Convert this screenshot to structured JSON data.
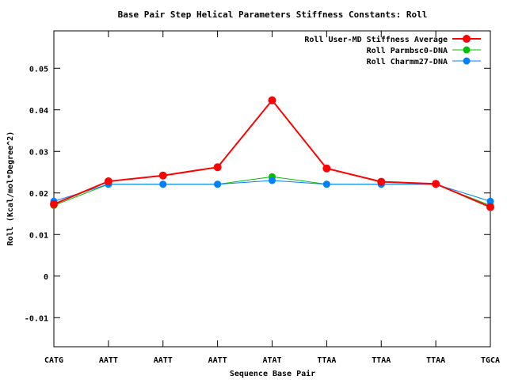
{
  "chart_data": {
    "type": "line",
    "title": "Base Pair Step Helical Parameters Stiffness Constants: Roll",
    "xlabel": "Sequence Base Pair",
    "ylabel": "Roll (Kcal/mol*Degree^2)",
    "categories": [
      "CATG",
      "AATT",
      "AATT",
      "AATT",
      "ATAT",
      "TTAA",
      "TTAA",
      "TTAA",
      "TGCA"
    ],
    "ylim": [
      -0.017,
      0.059
    ],
    "yticks": [
      -0.01,
      0,
      0.01,
      0.02,
      0.03,
      0.04,
      0.05
    ],
    "ytick_labels": [
      "-0.01",
      "0",
      "0.01",
      "0.02",
      "0.03",
      "0.04",
      "0.05"
    ],
    "grid": false,
    "legend_position": "top-right",
    "series": [
      {
        "name": "Roll User-MD Stiffness Average",
        "color": "#ff0000",
        "values": [
          0.0173,
          0.0228,
          0.0242,
          0.0262,
          0.0423,
          0.0259,
          0.0227,
          0.0222,
          0.0166
        ]
      },
      {
        "name": "Roll Parmbsc0-DNA",
        "color": "#00c000",
        "values": [
          0.017,
          0.0221,
          0.0221,
          0.0221,
          0.0239,
          0.0221,
          0.0221,
          0.0221,
          0.017
        ]
      },
      {
        "name": "Roll Charmm27-DNA",
        "color": "#0080ff",
        "values": [
          0.018,
          0.0221,
          0.0221,
          0.0221,
          0.023,
          0.0221,
          0.0221,
          0.0221,
          0.018
        ]
      }
    ]
  }
}
